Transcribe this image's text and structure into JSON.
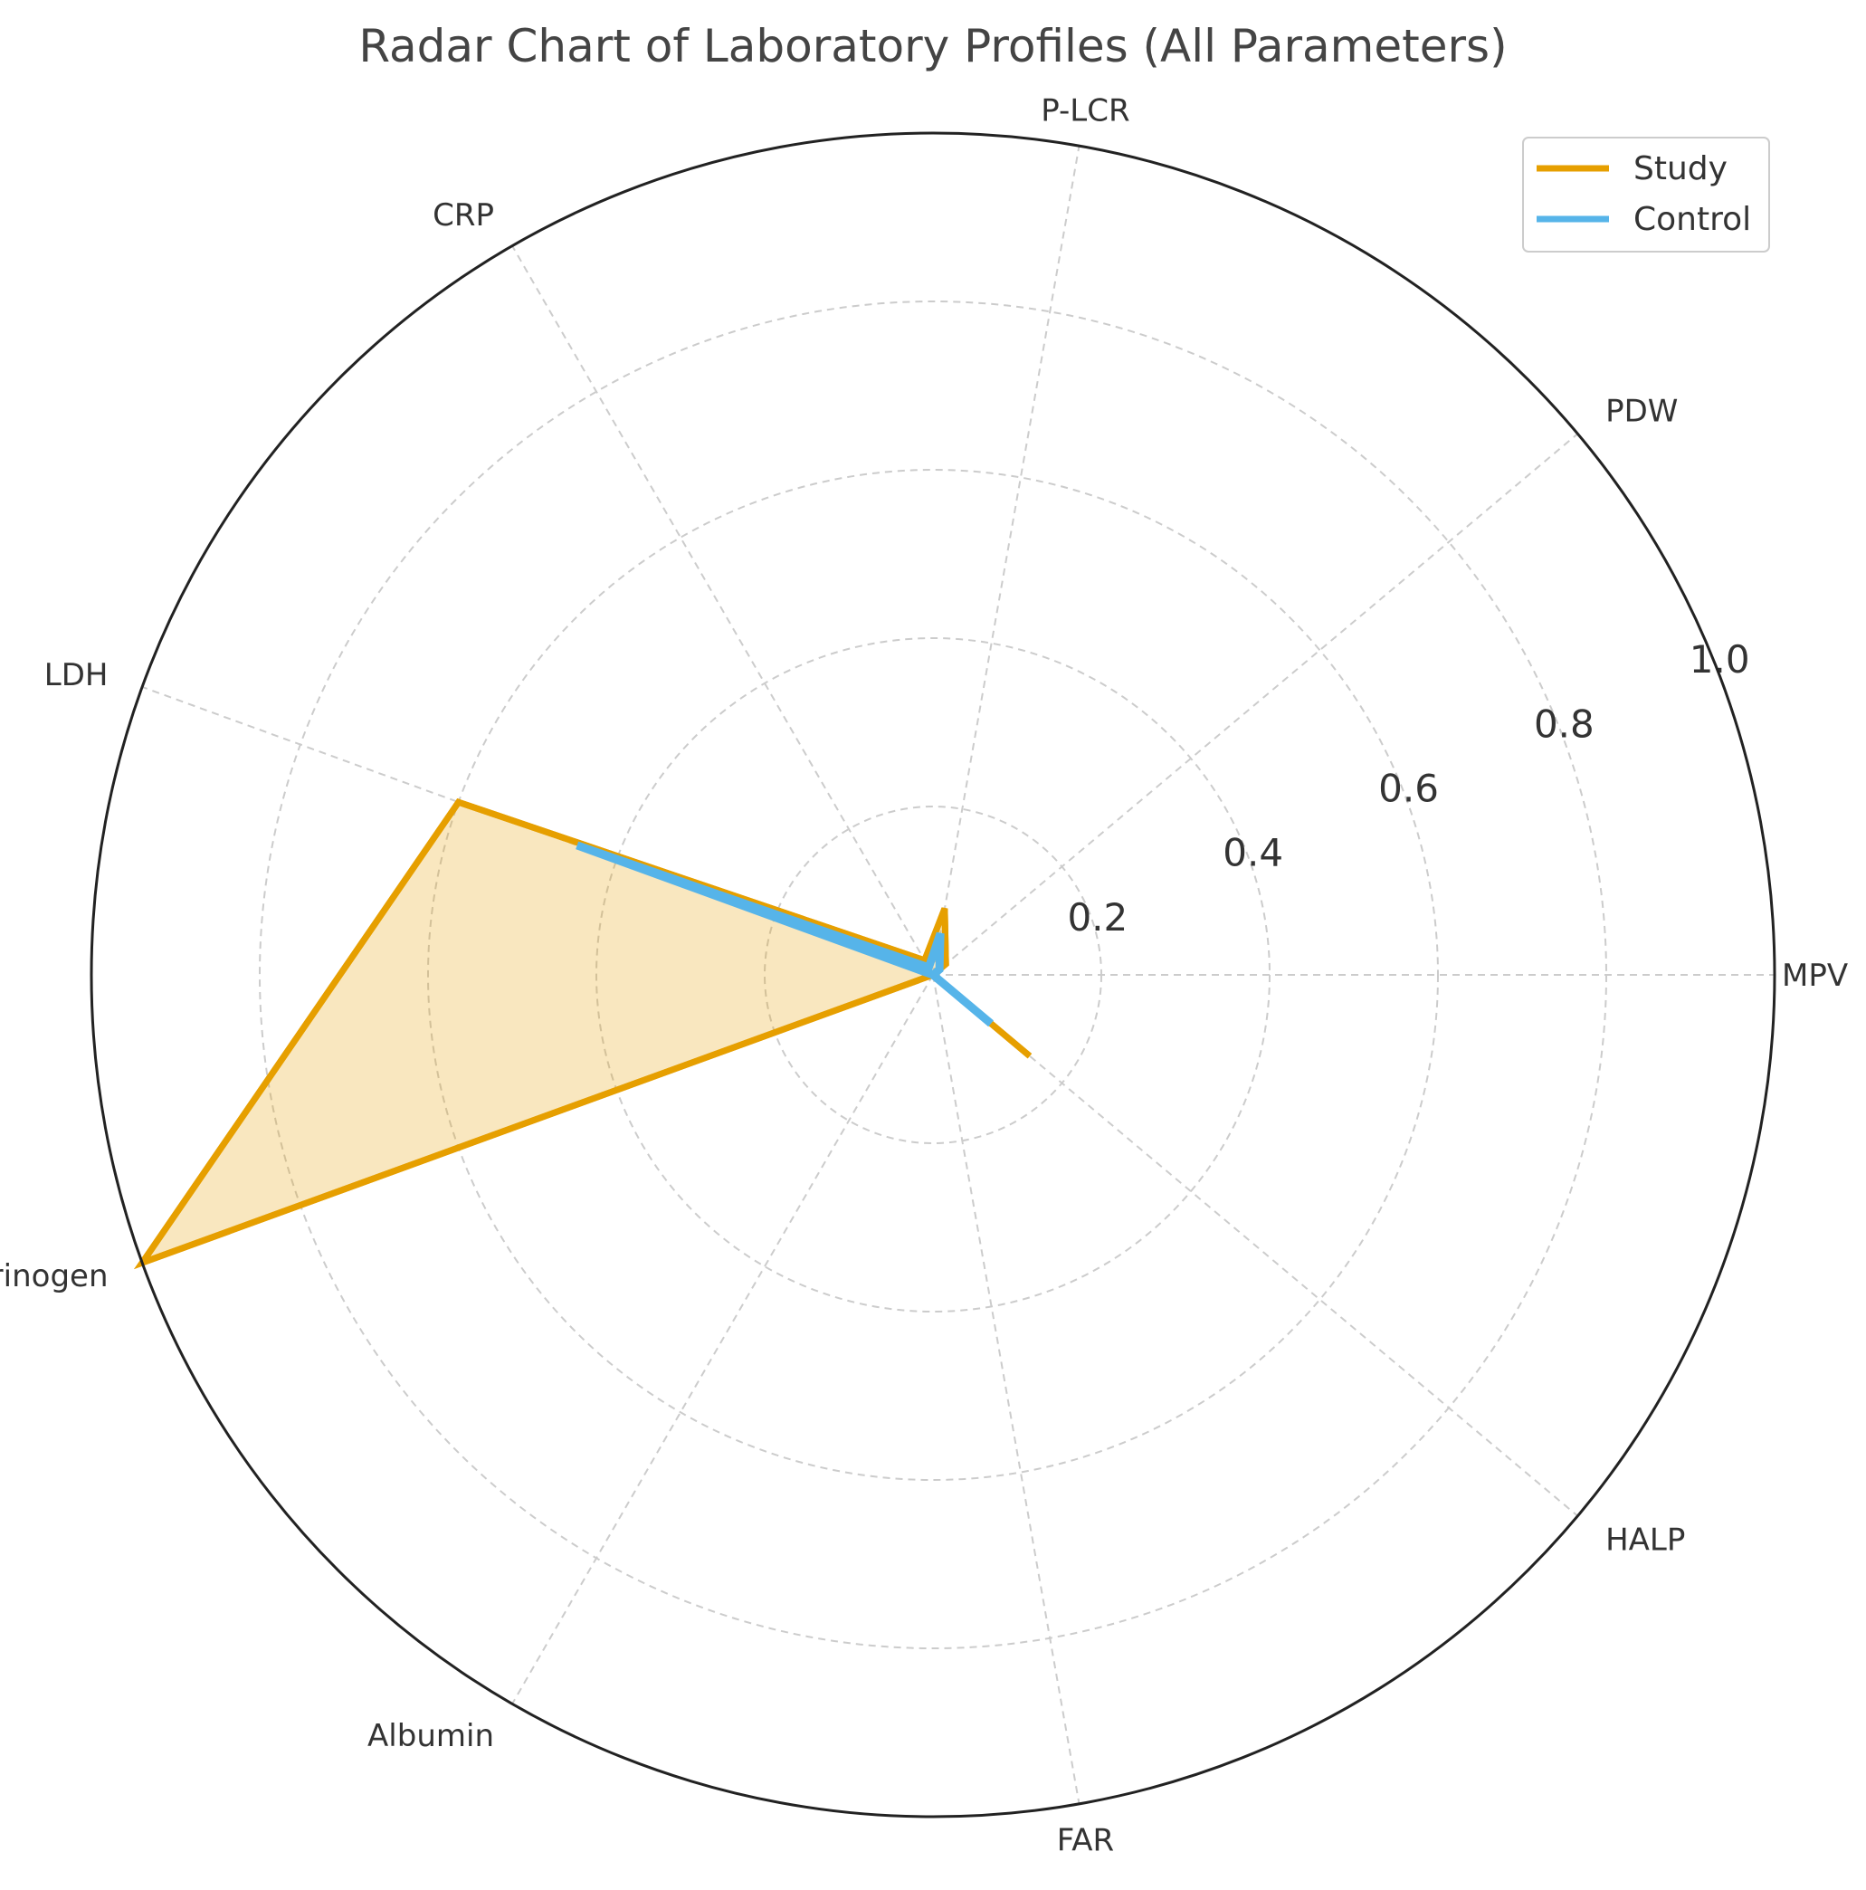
{
  "chart_data": {
    "type": "radar",
    "title": "Radar Chart of Laboratory Profiles (All Parameters)",
    "categories": [
      "MPV",
      "PDW",
      "P-LCR",
      "CRP",
      "LDH",
      "Fibrinogen",
      "Albumin",
      "FAR",
      "HALP"
    ],
    "rlim": [
      0,
      1.0
    ],
    "r_ticks": [
      "0.2",
      "0.4",
      "0.6",
      "0.8",
      "1.0"
    ],
    "r_tick_values": [
      0.2,
      0.4,
      0.6,
      0.8,
      1.0
    ],
    "grid": true,
    "legend_position": "top-right",
    "series": [
      {
        "name": "Study",
        "color": "#E69F00",
        "fill": true,
        "values": [
          0.0,
          0.02,
          0.08,
          0.02,
          0.6,
          1.0,
          0.0,
          0.0,
          0.15
        ]
      },
      {
        "name": "Control",
        "color": "#56B4E9",
        "fill": false,
        "values": [
          0.0,
          0.01,
          0.05,
          0.01,
          0.45,
          0.0,
          0.0,
          0.0,
          0.09
        ]
      }
    ]
  }
}
